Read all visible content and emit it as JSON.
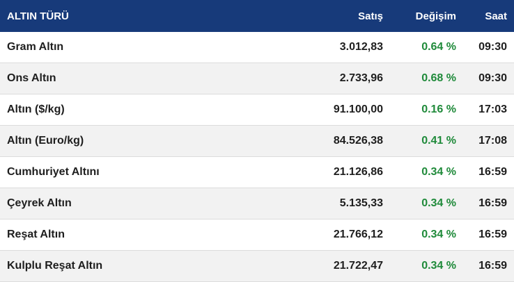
{
  "header": {
    "name": "ALTIN TÜRÜ",
    "sell": "Satış",
    "change": "Değişim",
    "time": "Saat"
  },
  "colors": {
    "header_bg": "#173a7a",
    "positive_change": "#1f8a3a",
    "alt_row": "#f2f2f2"
  },
  "rows": [
    {
      "name": "Gram Altın",
      "sell": "3.012,83",
      "change": "0.64 %",
      "time": "09:30"
    },
    {
      "name": "Ons Altın",
      "sell": "2.733,96",
      "change": "0.68 %",
      "time": "09:30"
    },
    {
      "name": "Altın ($/kg)",
      "sell": "91.100,00",
      "change": "0.16 %",
      "time": "17:03"
    },
    {
      "name": "Altın (Euro/kg)",
      "sell": "84.526,38",
      "change": "0.41 %",
      "time": "17:08"
    },
    {
      "name": "Cumhuriyet Altını",
      "sell": "21.126,86",
      "change": "0.34 %",
      "time": "16:59"
    },
    {
      "name": "Çeyrek Altın",
      "sell": "5.135,33",
      "change": "0.34 %",
      "time": "16:59"
    },
    {
      "name": "Reşat Altın",
      "sell": "21.766,12",
      "change": "0.34 %",
      "time": "16:59"
    },
    {
      "name": "Kulplu Reşat Altın",
      "sell": "21.722,47",
      "change": "0.34 %",
      "time": "16:59"
    }
  ]
}
